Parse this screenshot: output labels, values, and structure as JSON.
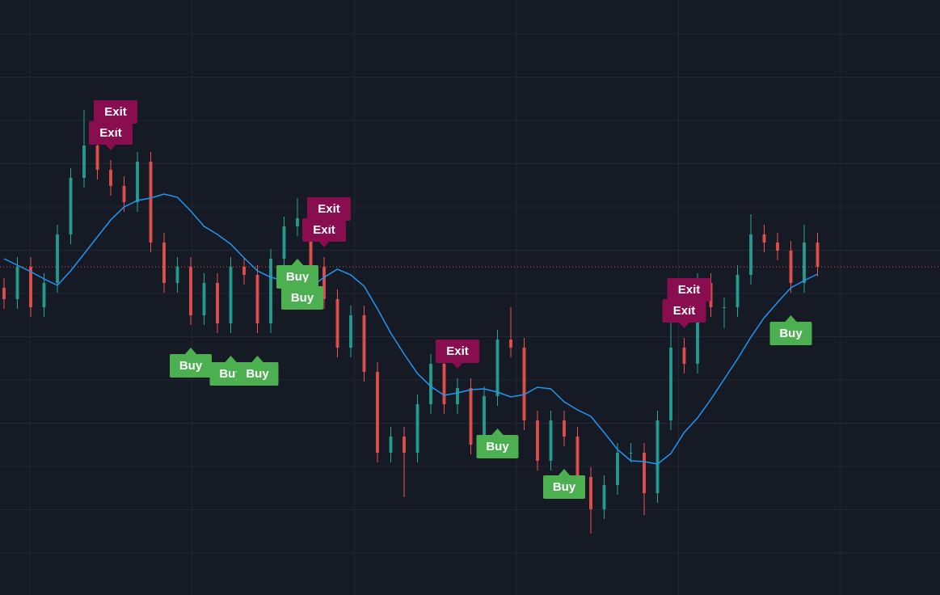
{
  "chart_data": {
    "type": "candlestick",
    "ylim": [
      0,
      736
    ],
    "colors": {
      "up": "#26a69a",
      "down": "#ef5350",
      "ma": "#2196f3",
      "buy": "#4caf50",
      "exit": "#880e4f",
      "background": "#161a25",
      "grid": "#232734"
    },
    "open": [
      380,
      366,
      406,
      356,
      386,
      446,
      516,
      556,
      526,
      506,
      486,
      536,
      436,
      386,
      406,
      346,
      386,
      336,
      406,
      396,
      336,
      416,
      456,
      466,
      406,
      366,
      306,
      346,
      276,
      176,
      196,
      176,
      236,
      286,
      236,
      256,
      186,
      246,
      316,
      306,
      216,
      166,
      216,
      196,
      146,
      106,
      136,
      176,
      176,
      126,
      216,
      306,
      286,
      386,
      356,
      356,
      396,
      446,
      436,
      426,
      386,
      436
    ],
    "high": [
      392,
      418,
      418,
      398,
      458,
      528,
      600,
      568,
      538,
      518,
      548,
      548,
      448,
      418,
      418,
      398,
      398,
      418,
      418,
      408,
      428,
      468,
      491,
      478,
      418,
      378,
      358,
      358,
      288,
      208,
      208,
      248,
      298,
      298,
      268,
      268,
      258,
      328,
      356,
      318,
      228,
      228,
      228,
      208,
      158,
      148,
      188,
      188,
      188,
      228,
      340,
      318,
      398,
      398,
      368,
      408,
      471,
      458,
      448,
      438,
      458,
      448
    ],
    "low": [
      354,
      354,
      344,
      344,
      374,
      434,
      504,
      514,
      494,
      474,
      474,
      424,
      374,
      374,
      334,
      334,
      324,
      324,
      384,
      324,
      324,
      404,
      444,
      394,
      354,
      294,
      294,
      264,
      164,
      164,
      121,
      164,
      224,
      224,
      224,
      174,
      174,
      234,
      294,
      204,
      154,
      154,
      184,
      134,
      76,
      94,
      124,
      164,
      99,
      114,
      204,
      274,
      274,
      344,
      330,
      344,
      384,
      424,
      414,
      374,
      374,
      394
    ],
    "close": [
      366,
      406,
      356,
      386,
      446,
      516,
      556,
      526,
      506,
      486,
      536,
      436,
      386,
      406,
      346,
      386,
      336,
      406,
      396,
      336,
      416,
      456,
      466,
      406,
      366,
      306,
      346,
      276,
      176,
      196,
      176,
      236,
      286,
      236,
      256,
      186,
      246,
      316,
      306,
      216,
      166,
      216,
      196,
      146,
      106,
      136,
      176,
      176,
      126,
      216,
      306,
      286,
      386,
      356,
      356,
      396,
      446,
      436,
      426,
      386,
      436,
      406
    ],
    "ma": [
      416,
      408,
      400,
      391,
      383,
      401,
      422,
      443,
      464,
      480,
      488,
      491,
      496,
      492,
      475,
      456,
      446,
      434,
      417,
      401,
      393,
      389,
      385,
      381,
      393,
      403,
      396,
      382,
      354,
      324,
      298,
      274,
      258,
      247,
      250,
      254,
      255,
      251,
      245,
      248,
      257,
      255,
      239,
      229,
      221,
      201,
      180,
      166,
      165,
      162,
      175,
      201,
      219,
      242,
      267,
      292,
      319,
      343,
      362,
      380,
      389,
      397
    ],
    "signals": [
      {
        "side": "exit",
        "label": "Exit",
        "index": 8
      },
      {
        "side": "exit",
        "label": "Exit",
        "index": 8
      },
      {
        "side": "exit",
        "label": "Exit",
        "index": 24
      },
      {
        "side": "exit",
        "label": "Exit",
        "index": 24
      },
      {
        "side": "exit",
        "label": "Exit",
        "index": 34
      },
      {
        "side": "exit",
        "label": "Exit",
        "index": 51
      },
      {
        "side": "exit",
        "label": "Exit",
        "index": 51
      },
      {
        "side": "buy",
        "label": "Buy",
        "index": 14
      },
      {
        "side": "buy",
        "label": "Buy",
        "index": 17
      },
      {
        "side": "buy",
        "label": "Buy",
        "index": 19
      },
      {
        "side": "buy",
        "label": "Buy",
        "index": 22
      },
      {
        "side": "buy",
        "label": "Buy",
        "index": 22
      },
      {
        "side": "buy",
        "label": "Buy",
        "index": 37
      },
      {
        "side": "buy",
        "label": "Buy",
        "index": 42
      },
      {
        "side": "buy",
        "label": "Buy",
        "index": 59
      }
    ]
  }
}
